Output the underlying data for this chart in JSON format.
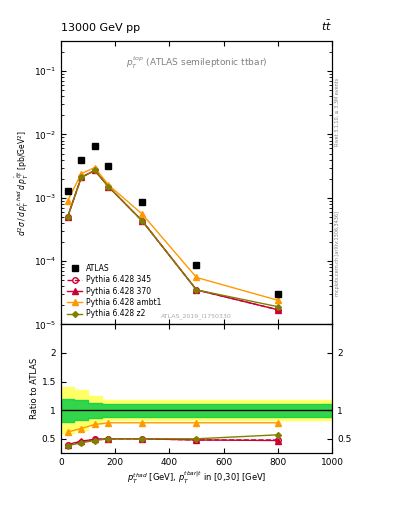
{
  "title_left": "13000 GeV pp",
  "title_right": "t$\\bar{t}$",
  "panel_title": "$p_T^{top}$ (ATLAS semileptonic ttbar)",
  "ylabel_main": "$d^2\\sigma\\,/\\,d\\,p_T^{t,had}\\,d\\,p_T^{\\bar{t}|t}$ [pb/GeV$^2$]",
  "ylabel_ratio": "Ratio to ATLAS",
  "xlabel": "$p_T^{thad}$ [GeV], $p_T^{tbar|t}$ in [0,30] [GeV]",
  "watermark": "ATLAS_2019_I1750330",
  "right_label": "mcplots.cern.ch [arXiv:1306.3436]",
  "right_label2": "Rivet 3.1.10, ≥ 3.3M events",
  "x_atlas": [
    25,
    75,
    125,
    175,
    300,
    500,
    800
  ],
  "y_atlas": [
    0.0013,
    0.004,
    0.0065,
    0.0032,
    0.00085,
    8.5e-05,
    3e-05
  ],
  "x_mc": [
    25,
    75,
    125,
    175,
    300,
    500,
    800
  ],
  "y_345": [
    0.0005,
    0.0021,
    0.0027,
    0.0015,
    0.00043,
    3.5e-05,
    1.7e-05
  ],
  "y_370": [
    0.0005,
    0.0021,
    0.0027,
    0.0015,
    0.00043,
    3.5e-05,
    1.7e-05
  ],
  "y_ambt1": [
    0.0009,
    0.0024,
    0.003,
    0.0016,
    0.00055,
    5.5e-05,
    2.4e-05
  ],
  "y_z2": [
    0.0005,
    0.0021,
    0.0027,
    0.0015,
    0.00043,
    3.5e-05,
    1.9e-05
  ],
  "ratio_345": [
    0.39,
    0.45,
    0.49,
    0.5,
    0.5,
    0.48,
    0.48
  ],
  "ratio_370": [
    0.4,
    0.46,
    0.49,
    0.5,
    0.5,
    0.48,
    0.47
  ],
  "ratio_ambt1": [
    0.62,
    0.68,
    0.75,
    0.78,
    0.78,
    0.78,
    0.78
  ],
  "ratio_z2": [
    0.38,
    0.43,
    0.47,
    0.5,
    0.5,
    0.5,
    0.57
  ],
  "band_x": [
    0,
    50,
    100,
    150,
    250,
    400,
    650,
    1000
  ],
  "band_green_lo": [
    0.8,
    0.82,
    0.86,
    0.88,
    0.88,
    0.88,
    0.88,
    0.88
  ],
  "band_green_hi": [
    1.2,
    1.18,
    1.12,
    1.1,
    1.1,
    1.1,
    1.1,
    1.1
  ],
  "band_yellow_lo": [
    0.6,
    0.65,
    0.75,
    0.82,
    0.82,
    0.82,
    0.82,
    0.82
  ],
  "band_yellow_hi": [
    1.4,
    1.35,
    1.25,
    1.18,
    1.18,
    1.18,
    1.18,
    1.18
  ],
  "color_atlas": "#000000",
  "color_345": "#cc0033",
  "color_370": "#cc0033",
  "color_ambt1": "#ff9900",
  "color_z2": "#808000",
  "color_band_green": "#00cc44",
  "color_band_yellow": "#ffff66",
  "xlim": [
    0,
    1000
  ],
  "ylim_main": [
    1e-05,
    0.3
  ],
  "ylim_ratio": [
    0.25,
    2.5
  ]
}
